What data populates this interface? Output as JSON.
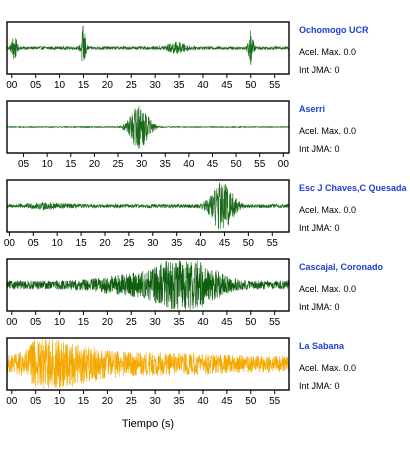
{
  "chart_data": {
    "type": "line",
    "xlabel": "Tiempo (s)",
    "panels": [
      {
        "station": "Ochomogo UCR",
        "accel_label": "Acel. Max. 0.0",
        "jma_label": "Int JMA: 0",
        "color": "#1a6b1a",
        "x_ticks": [
          "00",
          "05",
          "10",
          "15",
          "20",
          "25",
          "30",
          "35",
          "40",
          "45",
          "50",
          "55"
        ],
        "xlim": [
          -1,
          58
        ],
        "noise_level": 0.07,
        "events": [
          {
            "t": 0.5,
            "amp": 0.55,
            "width": 0.4
          },
          {
            "t": 15.0,
            "amp": 0.95,
            "width": 0.35
          },
          {
            "t": 34.5,
            "amp": 0.2,
            "width": 1.5
          },
          {
            "t": 50.0,
            "amp": 0.7,
            "width": 0.4
          }
        ]
      },
      {
        "station": "Aserri",
        "accel_label": "Acel. Max. 0.0",
        "jma_label": "Int JMA: 0",
        "color": "#1a6b1a",
        "x_ticks": [
          "05",
          "10",
          "15",
          "20",
          "25",
          "30",
          "35",
          "40",
          "45",
          "50",
          "55",
          "00"
        ],
        "xlim": [
          1.5,
          61.2
        ],
        "noise_level": 0.02,
        "events": [
          {
            "t": 29.5,
            "amp": 0.95,
            "width": 1.6
          }
        ]
      },
      {
        "station": "Esc J Chaves,C Quesada",
        "accel_label": "Acel. Max. 0.0",
        "jma_label": "Int JMA: 0",
        "color": "#1a6b1a",
        "x_ticks": [
          "00",
          "05",
          "10",
          "15",
          "20",
          "25",
          "30",
          "35",
          "40",
          "45",
          "50",
          "55"
        ],
        "xlim": [
          -0.5,
          58.5
        ],
        "noise_level": 0.08,
        "events": [
          {
            "t": 8,
            "amp": 0.08,
            "width": 3
          },
          {
            "t": 44.5,
            "amp": 1.0,
            "width": 1.8
          }
        ]
      },
      {
        "station": "Cascajal, Coronado",
        "accel_label": "Acel. Max. 0.0",
        "jma_label": "Int JMA: 0",
        "color": "#0f5e0f",
        "x_ticks": [
          "00",
          "05",
          "10",
          "15",
          "20",
          "25",
          "30",
          "35",
          "40",
          "45",
          "50",
          "55"
        ],
        "xlim": [
          -1,
          58
        ],
        "noise_level": 0.18,
        "events": [
          {
            "t": 28,
            "amp": 0.35,
            "width": 7
          },
          {
            "t": 35,
            "amp": 0.9,
            "width": 3.2
          },
          {
            "t": 41,
            "amp": 0.45,
            "width": 3
          }
        ]
      },
      {
        "station": "La Sabana",
        "accel_label": "Acel. Max. 0.0",
        "jma_label": "Int JMA: 0",
        "color": "#f5a800",
        "x_ticks": [
          "00",
          "05",
          "10",
          "15",
          "20",
          "25",
          "30",
          "35",
          "40",
          "45",
          "50",
          "55"
        ],
        "xlim": [
          -1,
          58
        ],
        "noise_level": 0.35,
        "events": [
          {
            "t": 7.5,
            "amp": 0.9,
            "width": 3
          },
          {
            "t": 14,
            "amp": 0.4,
            "width": 5
          },
          {
            "t": 30,
            "amp": 0.15,
            "width": 10
          }
        ]
      }
    ]
  }
}
